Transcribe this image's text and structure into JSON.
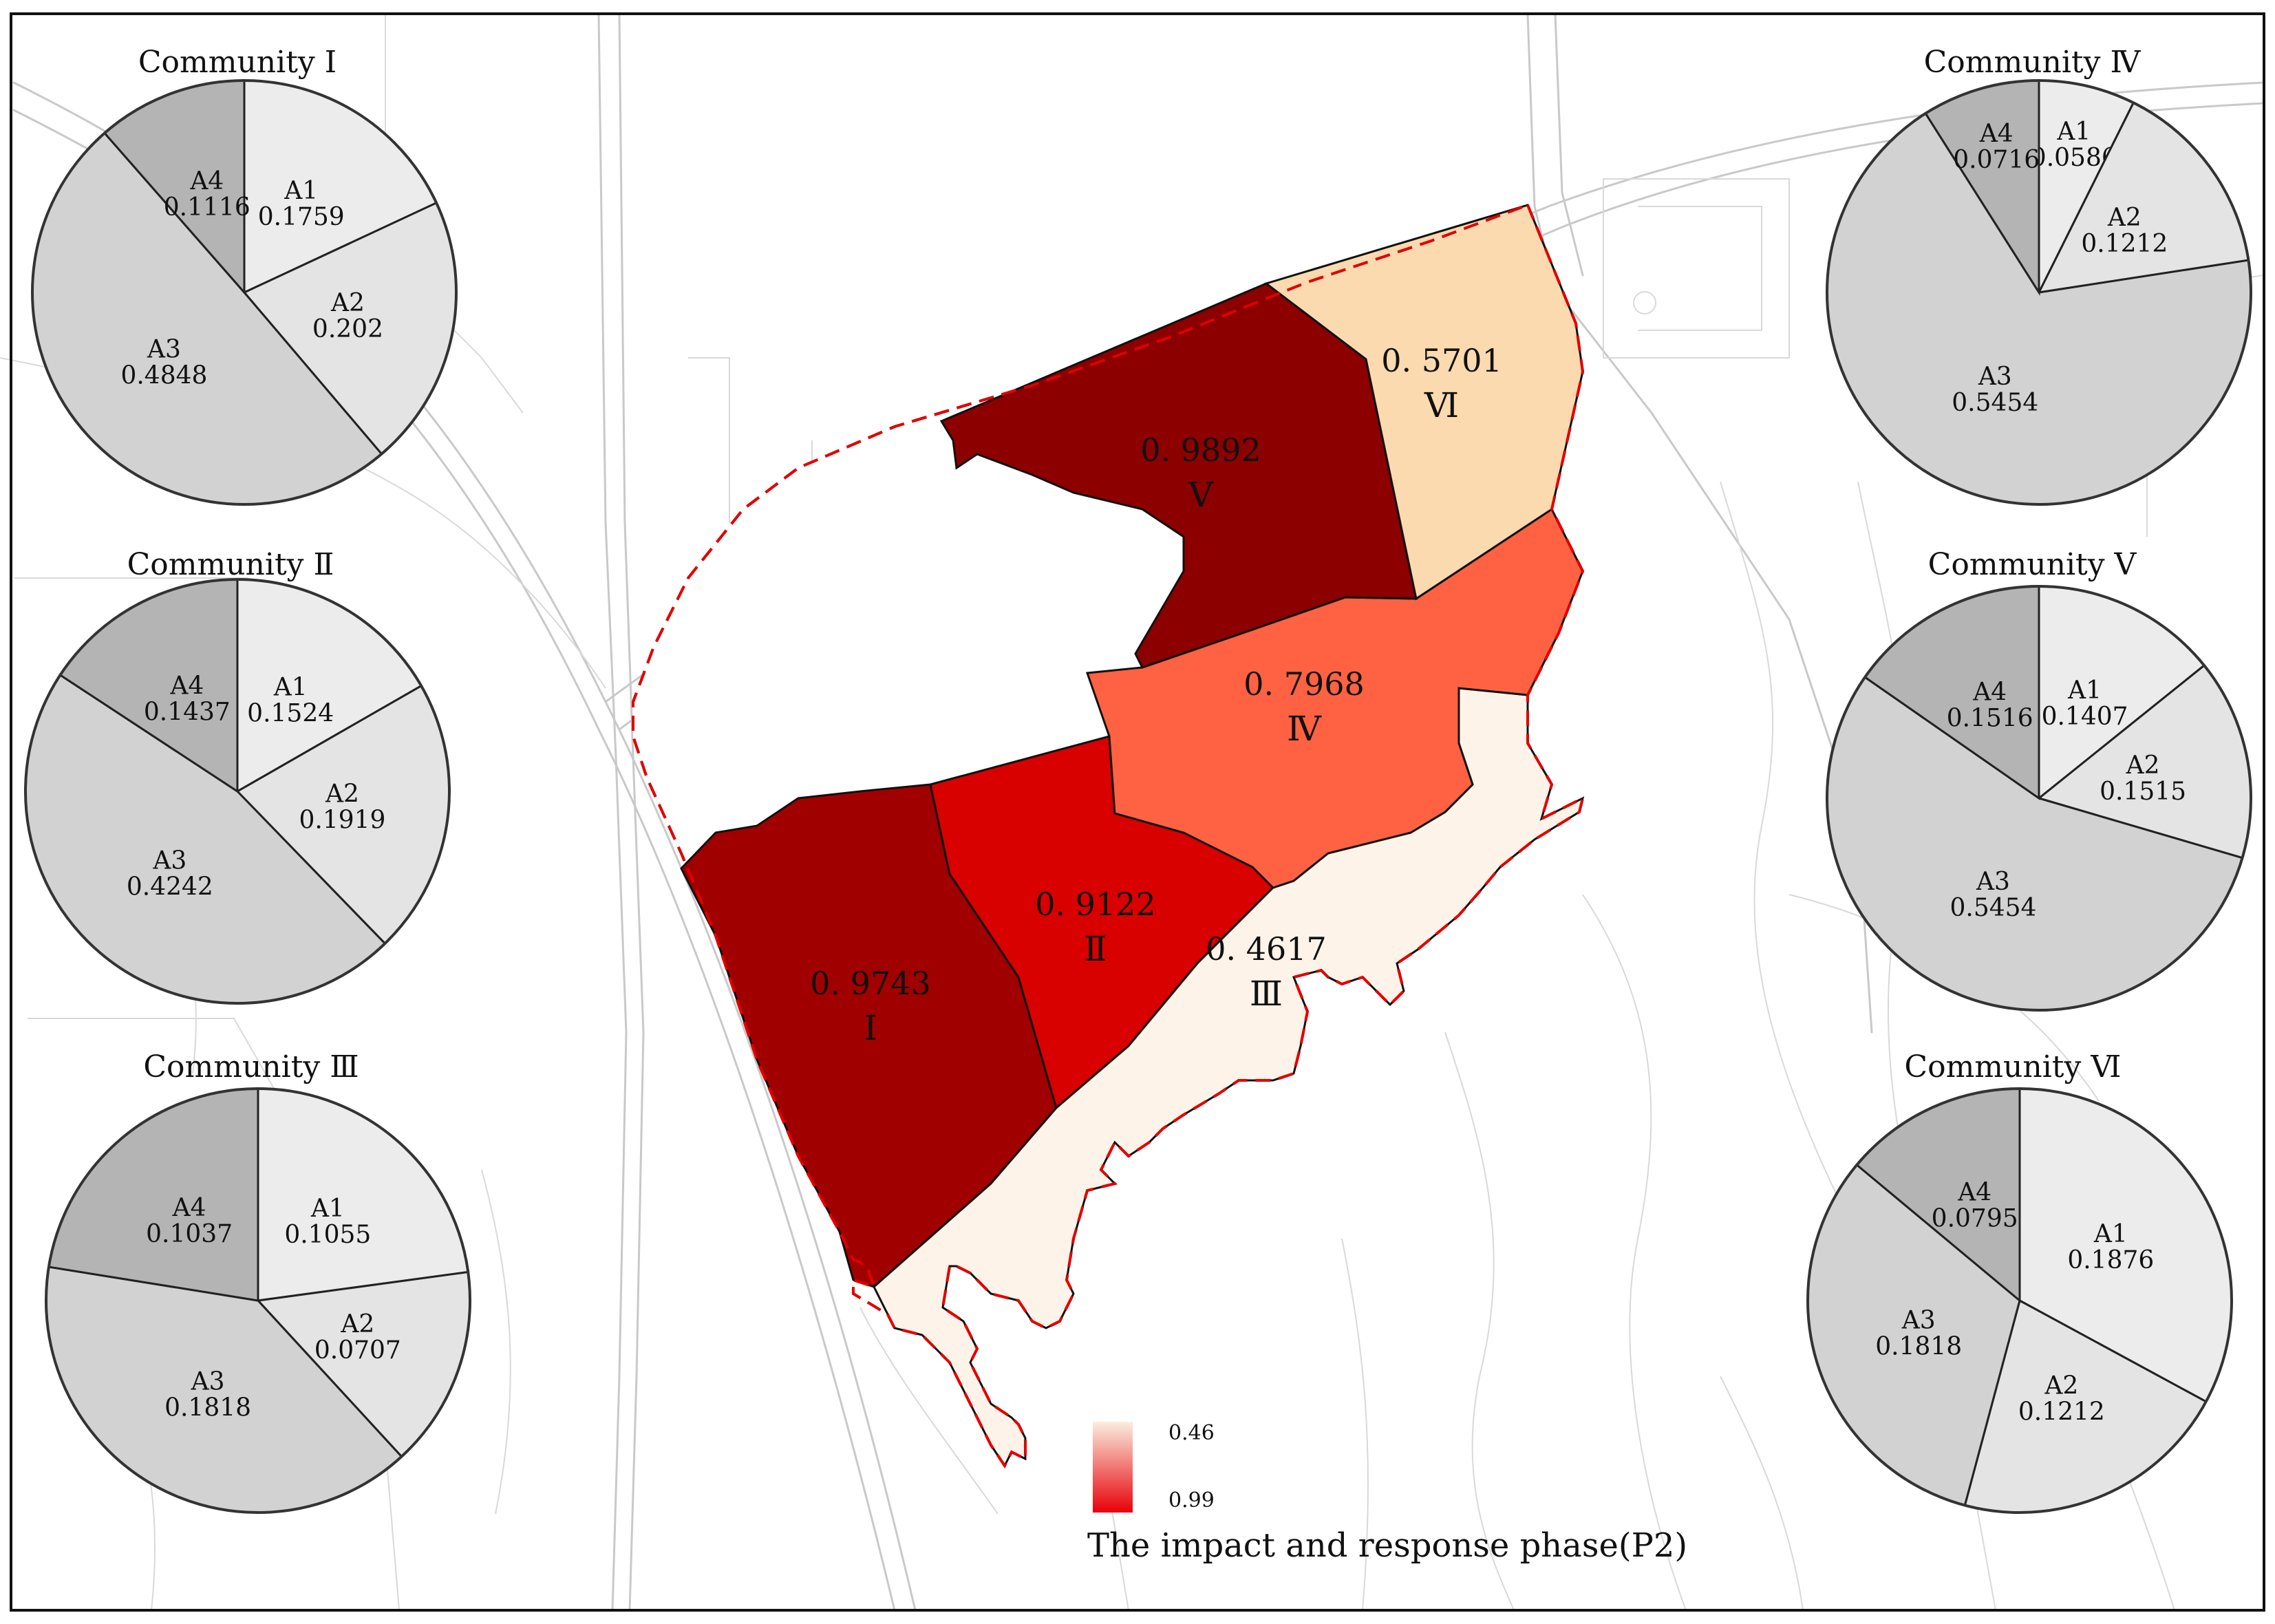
{
  "legend": {
    "title": "The impact and response phase(P2)",
    "min_label": "0.46",
    "max_label": "0.99",
    "color_low": "#fbeedf",
    "color_high": "#e8000a"
  },
  "regions": [
    {
      "id": "I",
      "roman": "Ⅰ",
      "value_text": "0. 9743",
      "value": 0.9743,
      "color": "#a10000"
    },
    {
      "id": "II",
      "roman": "Ⅱ",
      "value_text": "0. 9122",
      "value": 0.9122,
      "color": "#d90000"
    },
    {
      "id": "III",
      "roman": "Ⅲ",
      "value_text": "0. 4617",
      "value": 0.4617,
      "color": "#fdf3e8"
    },
    {
      "id": "IV",
      "roman": "Ⅳ",
      "value_text": "0. 7968",
      "value": 0.7968,
      "color": "#ff6242"
    },
    {
      "id": "V",
      "roman": "Ⅴ",
      "value_text": "0. 9892",
      "value": 0.9892,
      "color": "#8c0000"
    },
    {
      "id": "VI",
      "roman": "Ⅵ",
      "value_text": "0. 5701",
      "value": 0.5701,
      "color": "#fbdab0"
    }
  ],
  "communities": [
    {
      "title": "Community Ⅰ",
      "slices": [
        {
          "name": "A1",
          "value": 0.1759,
          "value_text": "0.1759"
        },
        {
          "name": "A2",
          "value": 0.202,
          "value_text": "0.202"
        },
        {
          "name": "A3",
          "value": 0.4848,
          "value_text": "0.4848"
        },
        {
          "name": "A4",
          "value": 0.1116,
          "value_text": "0.1116"
        }
      ]
    },
    {
      "title": "Community Ⅱ",
      "slices": [
        {
          "name": "A1",
          "value": 0.1524,
          "value_text": "0.1524"
        },
        {
          "name": "A2",
          "value": 0.1919,
          "value_text": "0.1919"
        },
        {
          "name": "A3",
          "value": 0.4242,
          "value_text": "0.4242"
        },
        {
          "name": "A4",
          "value": 0.1437,
          "value_text": "0.1437"
        }
      ]
    },
    {
      "title": "Community Ⅲ",
      "slices": [
        {
          "name": "A1",
          "value": 0.1055,
          "value_text": "0.1055"
        },
        {
          "name": "A2",
          "value": 0.0707,
          "value_text": "0.0707"
        },
        {
          "name": "A3",
          "value": 0.1818,
          "value_text": "0.1818"
        },
        {
          "name": "A4",
          "value": 0.1037,
          "value_text": "0.1037"
        }
      ]
    },
    {
      "title": "Community Ⅳ",
      "slices": [
        {
          "name": "A1",
          "value": 0.0586,
          "value_text": "0.0586"
        },
        {
          "name": "A2",
          "value": 0.1212,
          "value_text": "0.1212"
        },
        {
          "name": "A3",
          "value": 0.5454,
          "value_text": "0.5454"
        },
        {
          "name": "A4",
          "value": 0.0716,
          "value_text": "0.0716"
        }
      ]
    },
    {
      "title": "Community Ⅴ",
      "slices": [
        {
          "name": "A1",
          "value": 0.1407,
          "value_text": "0.1407"
        },
        {
          "name": "A2",
          "value": 0.1515,
          "value_text": "0.1515"
        },
        {
          "name": "A3",
          "value": 0.5454,
          "value_text": "0.5454"
        },
        {
          "name": "A4",
          "value": 0.1516,
          "value_text": "0.1516"
        }
      ]
    },
    {
      "title": "Community Ⅵ",
      "slices": [
        {
          "name": "A1",
          "value": 0.1876,
          "value_text": "0.1876"
        },
        {
          "name": "A2",
          "value": 0.1212,
          "value_text": "0.1212"
        },
        {
          "name": "A3",
          "value": 0.1818,
          "value_text": "0.1818"
        },
        {
          "name": "A4",
          "value": 0.0795,
          "value_text": "0.0795"
        }
      ]
    }
  ],
  "slice_colors": {
    "A1": "#ececec",
    "A2": "#e4e4e4",
    "A3": "#d2d2d2",
    "A4": "#b4b4b4"
  },
  "boundary_color": "#e00000"
}
